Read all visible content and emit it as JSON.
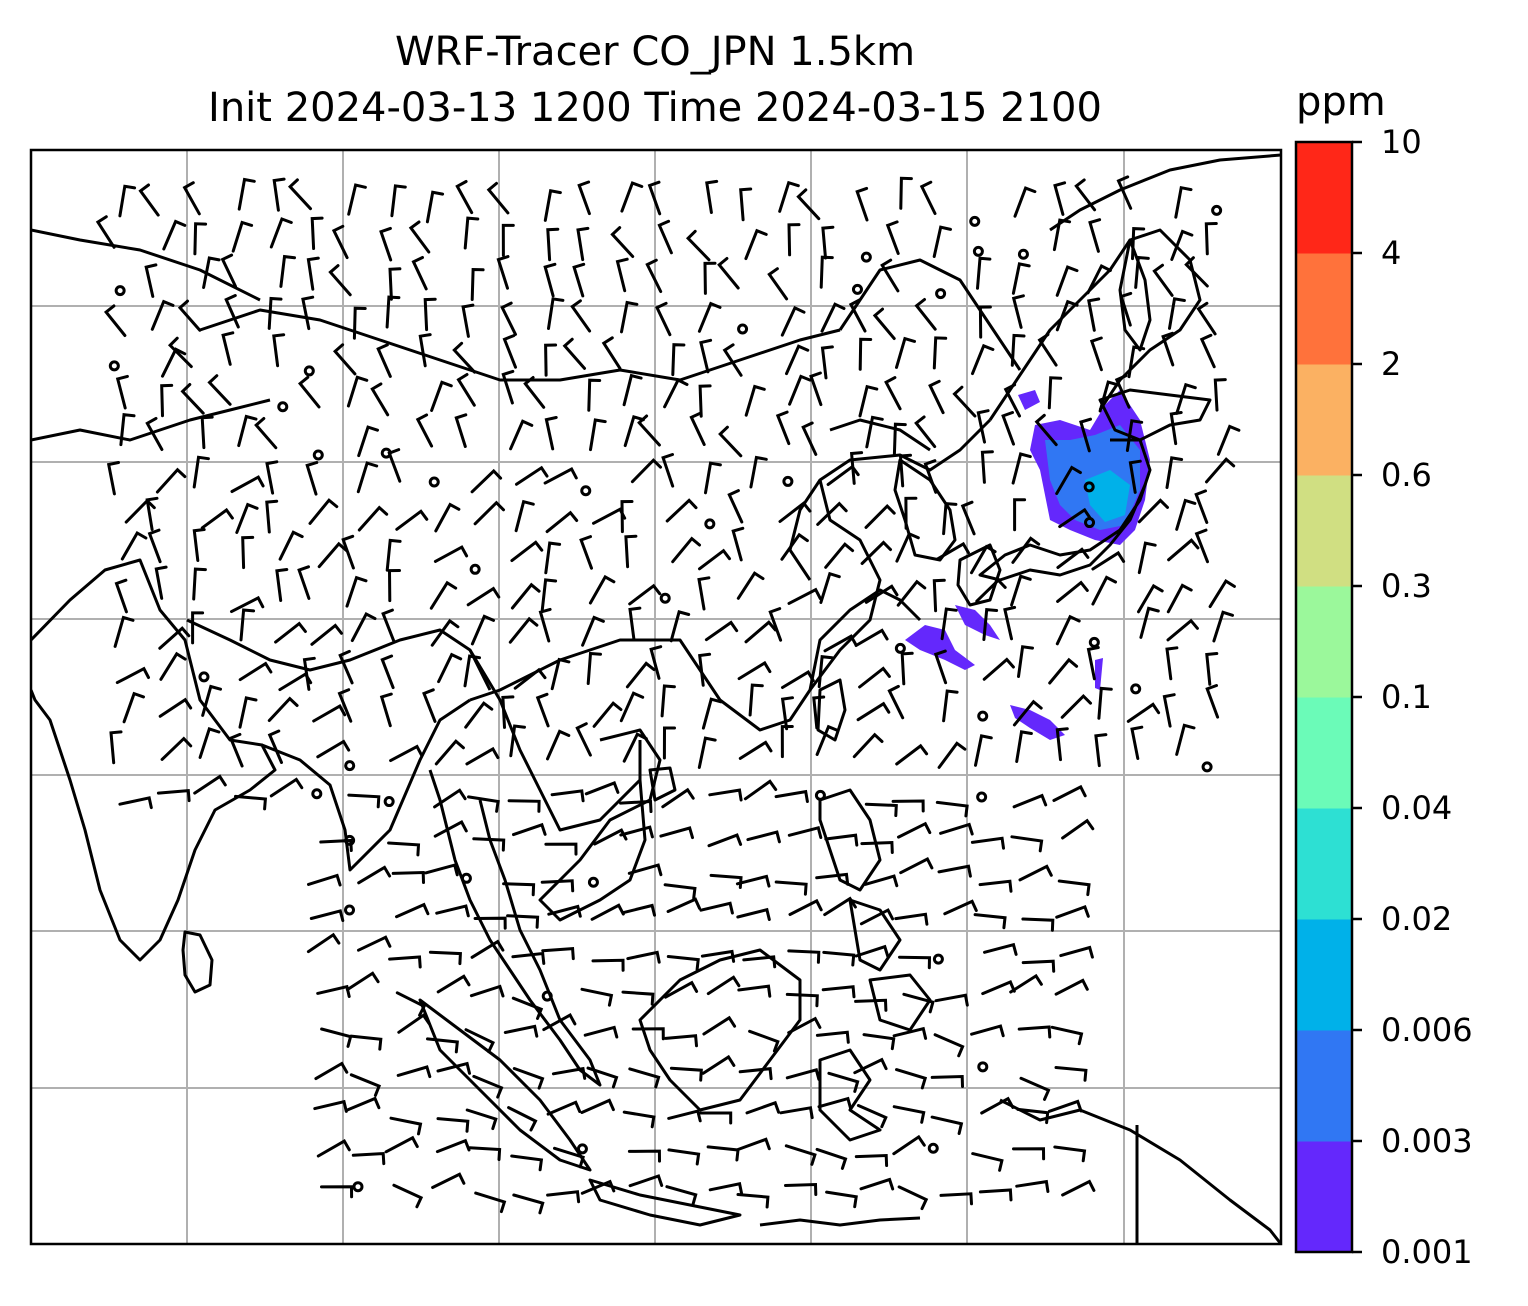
{
  "title": {
    "line1": "WRF-Tracer CO_JPN 1.5km",
    "line2": "Init 2024-03-13 1200 Time 2024-03-15 2100"
  },
  "colorbar": {
    "unit": "ppm",
    "levels": [
      "0.001",
      "0.003",
      "0.006",
      "0.02",
      "0.04",
      "0.1",
      "0.3",
      "0.6",
      "2",
      "4",
      "10"
    ],
    "colors": [
      "#6428fc",
      "#3077f3",
      "#00b1e9",
      "#2de0d3",
      "#6bfbb8",
      "#9bf89b",
      "#d0df82",
      "#fbb162",
      "#ff723b",
      "#ff2718"
    ]
  },
  "map": {
    "gridlines": true,
    "features": [
      "coastlines",
      "country-borders",
      "wind-barbs",
      "co-tracer-concentration"
    ],
    "plume_colors": {
      "outer": "#6428fc",
      "inner": "#3077f3",
      "core": "#00b1e9"
    }
  }
}
